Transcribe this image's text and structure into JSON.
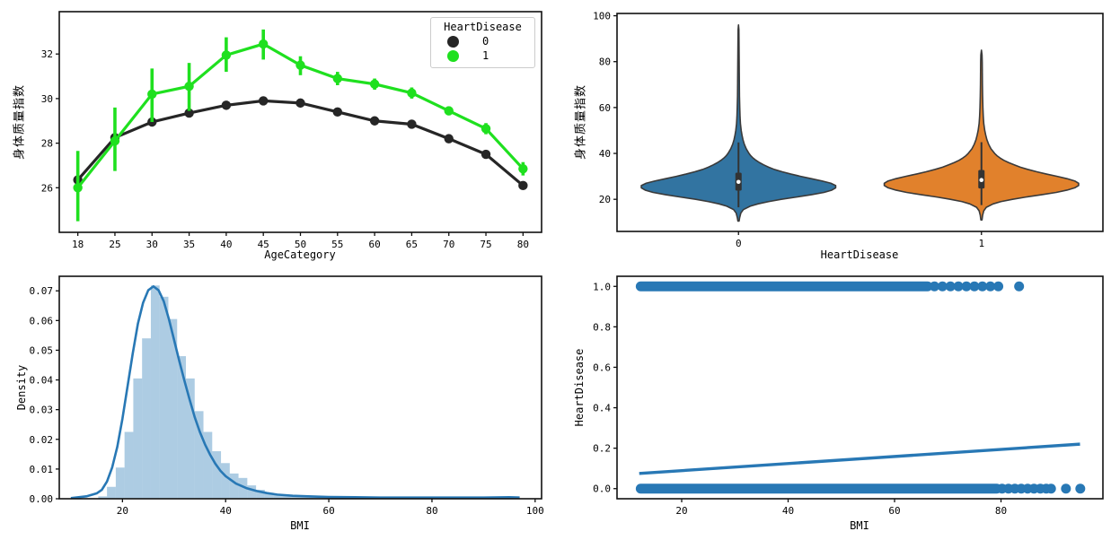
{
  "figure": {
    "background": "#ffffff"
  },
  "chart_data": [
    {
      "type": "line",
      "panel": "pointplot",
      "xlabel": "AgeCategory",
      "ylabel": "身体质量指数",
      "x_ticks": [
        "18",
        "25",
        "30",
        "35",
        "40",
        "45",
        "50",
        "55",
        "60",
        "65",
        "70",
        "75",
        "80"
      ],
      "y_ticks": [
        "26",
        "28",
        "30",
        "32"
      ],
      "ylim": [
        24.0,
        33.9
      ],
      "legend": {
        "title": "HeartDisease",
        "entries": [
          {
            "label": "0",
            "color": "#262626"
          },
          {
            "label": "1",
            "color": "#1fe01f"
          }
        ]
      },
      "series": [
        {
          "name": "0",
          "color": "#262626",
          "values": [
            26.35,
            28.25,
            28.95,
            29.35,
            29.7,
            29.9,
            29.8,
            29.4,
            29.0,
            28.85,
            28.2,
            27.5,
            26.1
          ],
          "ci": [
            [
              26.1,
              26.6
            ],
            [
              28.1,
              28.4
            ],
            [
              28.85,
              29.05
            ],
            [
              29.25,
              29.45
            ],
            [
              29.62,
              29.78
            ],
            [
              29.82,
              29.98
            ],
            [
              29.72,
              29.88
            ],
            [
              29.32,
              29.48
            ],
            [
              28.92,
              29.08
            ],
            [
              28.77,
              28.93
            ],
            [
              28.1,
              28.3
            ],
            [
              27.38,
              27.62
            ],
            [
              25.95,
              26.25
            ]
          ]
        },
        {
          "name": "1",
          "color": "#1fe01f",
          "values": [
            26.0,
            28.1,
            30.2,
            30.55,
            31.95,
            32.45,
            31.5,
            30.9,
            30.65,
            30.25,
            29.45,
            28.65,
            26.85
          ],
          "ci": [
            [
              24.5,
              27.65
            ],
            [
              26.75,
              29.6
            ],
            [
              28.95,
              31.35
            ],
            [
              29.45,
              31.6
            ],
            [
              31.2,
              32.75
            ],
            [
              31.75,
              33.1
            ],
            [
              31.05,
              31.9
            ],
            [
              30.6,
              31.2
            ],
            [
              30.4,
              30.9
            ],
            [
              30.0,
              30.5
            ],
            [
              29.25,
              29.65
            ],
            [
              28.4,
              28.9
            ],
            [
              26.55,
              27.15
            ]
          ]
        }
      ]
    },
    {
      "type": "violin",
      "panel": "violin",
      "xlabel": "HeartDisease",
      "ylabel": "身体质量指数",
      "x_ticks": [
        "0",
        "1"
      ],
      "y_ticks": [
        "20",
        "40",
        "60",
        "80",
        "100"
      ],
      "ylim": [
        6,
        101
      ],
      "edge_color": "#3a3a3a",
      "box_color": "#333333",
      "violins": [
        {
          "category": "0",
          "color": "#3274a1",
          "stats": {
            "whisker_low": 16.5,
            "q1": 23.8,
            "median": 27.6,
            "q3": 31.6,
            "whisker_high": 44.8,
            "min": 10.5,
            "max": 96
          },
          "profile": [
            [
              10.5,
              0.003
            ],
            [
              12,
              0.006
            ],
            [
              14,
              0.012
            ],
            [
              15.5,
              0.025
            ],
            [
              17,
              0.06
            ],
            [
              18,
              0.1
            ],
            [
              19,
              0.155
            ],
            [
              20,
              0.22
            ],
            [
              21,
              0.3
            ],
            [
              22,
              0.375
            ],
            [
              23,
              0.44
            ],
            [
              24,
              0.48
            ],
            [
              25,
              0.5
            ],
            [
              26,
              0.5
            ],
            [
              27,
              0.475
            ],
            [
              28,
              0.43
            ],
            [
              29,
              0.375
            ],
            [
              30,
              0.32
            ],
            [
              31,
              0.27
            ],
            [
              32,
              0.225
            ],
            [
              33,
              0.185
            ],
            [
              34,
              0.155
            ],
            [
              35,
              0.13
            ],
            [
              36,
              0.108
            ],
            [
              37,
              0.09
            ],
            [
              38,
              0.075
            ],
            [
              39,
              0.063
            ],
            [
              40,
              0.054
            ],
            [
              42,
              0.04
            ],
            [
              44,
              0.03
            ],
            [
              46,
              0.023
            ],
            [
              48,
              0.018
            ],
            [
              50,
              0.014
            ],
            [
              53,
              0.01
            ],
            [
              56,
              0.008
            ],
            [
              60,
              0.0065
            ],
            [
              65,
              0.005
            ],
            [
              70,
              0.0045
            ],
            [
              75,
              0.004
            ],
            [
              80,
              0.0035
            ],
            [
              85,
              0.003
            ],
            [
              90,
              0.0025
            ],
            [
              94,
              0.002
            ],
            [
              96,
              0.0
            ]
          ]
        },
        {
          "category": "1",
          "color": "#e1812c",
          "stats": {
            "whisker_low": 17.5,
            "q1": 24.7,
            "median": 28.4,
            "q3": 32.8,
            "whisker_high": 44.9,
            "min": 11,
            "max": 85
          },
          "profile": [
            [
              11,
              0.003
            ],
            [
              13,
              0.006
            ],
            [
              15,
              0.012
            ],
            [
              16.5,
              0.025
            ],
            [
              18,
              0.06
            ],
            [
              19,
              0.1
            ],
            [
              20,
              0.16
            ],
            [
              21,
              0.23
            ],
            [
              22,
              0.31
            ],
            [
              23,
              0.385
            ],
            [
              24,
              0.44
            ],
            [
              25,
              0.48
            ],
            [
              26,
              0.5
            ],
            [
              27,
              0.5
            ],
            [
              28,
              0.48
            ],
            [
              29,
              0.44
            ],
            [
              30,
              0.39
            ],
            [
              31,
              0.335
            ],
            [
              32,
              0.285
            ],
            [
              33,
              0.24
            ],
            [
              34,
              0.2
            ],
            [
              35,
              0.17
            ],
            [
              36,
              0.14
            ],
            [
              37,
              0.115
            ],
            [
              38,
              0.096
            ],
            [
              39,
              0.08
            ],
            [
              40,
              0.068
            ],
            [
              42,
              0.049
            ],
            [
              44,
              0.037
            ],
            [
              46,
              0.028
            ],
            [
              48,
              0.022
            ],
            [
              50,
              0.017
            ],
            [
              53,
              0.012
            ],
            [
              56,
              0.0095
            ],
            [
              60,
              0.0075
            ],
            [
              65,
              0.006
            ],
            [
              70,
              0.005
            ],
            [
              75,
              0.0045
            ],
            [
              80,
              0.004
            ],
            [
              83,
              0.003
            ],
            [
              85,
              0.0
            ]
          ]
        }
      ]
    },
    {
      "type": "bar",
      "panel": "histogram",
      "xlabel": "BMI",
      "ylabel": "Density",
      "x_ticks": [
        "20",
        "40",
        "60",
        "80",
        "100"
      ],
      "y_ticks": [
        "0.00",
        "0.01",
        "0.02",
        "0.03",
        "0.04",
        "0.05",
        "0.06",
        "0.07"
      ],
      "xlim": [
        7.75,
        101.25
      ],
      "ylim": [
        0,
        0.0749
      ],
      "bar_fill": "rgba(40,120,181,0.38)",
      "kde_color": "#2878b5",
      "bin_width": 1.7,
      "bins": [
        [
          15.3,
          0.0008
        ],
        [
          17.0,
          0.004
        ],
        [
          18.7,
          0.0105
        ],
        [
          20.4,
          0.0225
        ],
        [
          22.1,
          0.0405
        ],
        [
          23.8,
          0.054
        ],
        [
          25.5,
          0.0718
        ],
        [
          27.2,
          0.068
        ],
        [
          28.9,
          0.0605
        ],
        [
          30.6,
          0.048
        ],
        [
          32.3,
          0.0405
        ],
        [
          34.0,
          0.0295
        ],
        [
          35.7,
          0.0225
        ],
        [
          37.4,
          0.016
        ],
        [
          39.1,
          0.012
        ],
        [
          40.8,
          0.0085
        ],
        [
          42.5,
          0.007
        ],
        [
          44.2,
          0.0045
        ],
        [
          45.9,
          0.003
        ],
        [
          47.6,
          0.002
        ],
        [
          49.3,
          0.0015
        ],
        [
          51.0,
          0.001
        ],
        [
          52.7,
          0.0008
        ],
        [
          54.4,
          0.0007
        ],
        [
          56.1,
          0.0006
        ],
        [
          57.8,
          0.0005
        ],
        [
          59.5,
          0.0005
        ],
        [
          61.2,
          0.0004
        ],
        [
          62.9,
          0.0004
        ],
        [
          64.6,
          0.0003
        ],
        [
          66.3,
          0.0003
        ],
        [
          68.0,
          0.0003
        ],
        [
          69.7,
          0.0003
        ],
        [
          71.4,
          0.0002
        ],
        [
          73.1,
          0.0002
        ],
        [
          74.8,
          0.0002
        ],
        [
          76.5,
          0.0002
        ],
        [
          78.2,
          0.0002
        ],
        [
          79.9,
          0.0002
        ],
        [
          81.6,
          0.0002
        ],
        [
          83.3,
          0.0002
        ],
        [
          85.0,
          0.0002
        ],
        [
          86.7,
          0.0002
        ],
        [
          88.4,
          0.0002
        ],
        [
          90.1,
          0.0002
        ],
        [
          91.8,
          0.0002
        ],
        [
          93.5,
          0.0002
        ],
        [
          95.2,
          0.0008
        ]
      ],
      "kde": [
        [
          10,
          0.0002
        ],
        [
          13,
          0.0008
        ],
        [
          15,
          0.0018
        ],
        [
          16,
          0.003
        ],
        [
          17,
          0.0058
        ],
        [
          18,
          0.0105
        ],
        [
          19,
          0.0175
        ],
        [
          20,
          0.027
        ],
        [
          21,
          0.038
        ],
        [
          22,
          0.049
        ],
        [
          23,
          0.059
        ],
        [
          24,
          0.066
        ],
        [
          25,
          0.0702
        ],
        [
          26,
          0.0715
        ],
        [
          27,
          0.0702
        ],
        [
          28,
          0.0665
        ],
        [
          29,
          0.0605
        ],
        [
          30,
          0.0535
        ],
        [
          31,
          0.0465
        ],
        [
          32,
          0.0398
        ],
        [
          33,
          0.0335
        ],
        [
          34,
          0.0275
        ],
        [
          35,
          0.0225
        ],
        [
          36,
          0.0183
        ],
        [
          37,
          0.0148
        ],
        [
          38,
          0.0118
        ],
        [
          39,
          0.0094
        ],
        [
          40,
          0.0076
        ],
        [
          42,
          0.0051
        ],
        [
          44,
          0.0036
        ],
        [
          46,
          0.0026
        ],
        [
          48,
          0.0019
        ],
        [
          50,
          0.0014
        ],
        [
          53,
          0.001
        ],
        [
          56,
          0.0008
        ],
        [
          60,
          0.0006
        ],
        [
          65,
          0.0005
        ],
        [
          70,
          0.0004
        ],
        [
          75,
          0.0004
        ],
        [
          80,
          0.0004
        ],
        [
          85,
          0.0004
        ],
        [
          90,
          0.0004
        ],
        [
          95,
          0.0005
        ],
        [
          97,
          0.0004
        ]
      ]
    },
    {
      "type": "scatter",
      "panel": "regplot",
      "xlabel": "BMI",
      "ylabel": "HeartDisease",
      "x_ticks": [
        "20",
        "40",
        "60",
        "80"
      ],
      "y_ticks": [
        "0.0",
        "0.2",
        "0.4",
        "0.6",
        "0.8",
        "1.0"
      ],
      "xlim": [
        7.85,
        99.15
      ],
      "ylim": [
        -0.05,
        1.05
      ],
      "point_color": "#2878b5",
      "line_color": "#2878b5",
      "bands": [
        {
          "y": 1,
          "dense_range": [
            12.3,
            66.2
          ],
          "dots": [
            67.5,
            69,
            70.5,
            72,
            73.5,
            75,
            76.5,
            78,
            79.5
          ],
          "isolated": [
            83.4
          ]
        },
        {
          "y": 0,
          "dense_range": [
            12.3,
            79.2
          ],
          "dots": [
            80.2,
            81.4,
            82.6,
            83.8,
            85,
            86.2,
            87.4,
            88.5,
            89.4
          ],
          "isolated": [
            92.2,
            94.9
          ]
        }
      ],
      "regression_line": {
        "x": [
          12.02,
          94.85
        ],
        "y": [
          0.075,
          0.22
        ]
      }
    }
  ]
}
